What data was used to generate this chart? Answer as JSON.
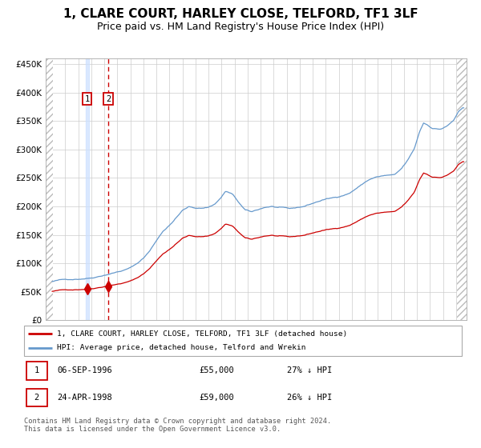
{
  "title": "1, CLARE COURT, HARLEY CLOSE, TELFORD, TF1 3LF",
  "subtitle": "Price paid vs. HM Land Registry's House Price Index (HPI)",
  "title_fontsize": 11,
  "subtitle_fontsize": 9,
  "legend_line1": "1, CLARE COURT, HARLEY CLOSE, TELFORD, TF1 3LF (detached house)",
  "legend_line2": "HPI: Average price, detached house, Telford and Wrekin",
  "red_color": "#cc0000",
  "blue_color": "#6699cc",
  "vline1_color": "#cce0ff",
  "vline2_color": "#cc0000",
  "sale1_date": 1996.68,
  "sale1_price": 55000,
  "sale2_date": 1998.31,
  "sale2_price": 59000,
  "sale1_label": "06-SEP-1996",
  "sale2_label": "24-APR-1998",
  "sale1_pct": "27% ↓ HPI",
  "sale2_pct": "26% ↓ HPI",
  "ylim": [
    0,
    460000
  ],
  "xlim_start": 1993.5,
  "xlim_end": 2025.8,
  "hpi_anchors": [
    [
      1994.0,
      68000
    ],
    [
      1994.5,
      70000
    ],
    [
      1995.0,
      71000
    ],
    [
      1995.5,
      72000
    ],
    [
      1996.0,
      73000
    ],
    [
      1996.5,
      74500
    ],
    [
      1997.0,
      76000
    ],
    [
      1997.5,
      79000
    ],
    [
      1998.0,
      82000
    ],
    [
      1998.5,
      85000
    ],
    [
      1999.0,
      88000
    ],
    [
      1999.5,
      91000
    ],
    [
      2000.0,
      95000
    ],
    [
      2000.5,
      102000
    ],
    [
      2001.0,
      112000
    ],
    [
      2001.5,
      125000
    ],
    [
      2002.0,
      143000
    ],
    [
      2002.5,
      160000
    ],
    [
      2003.0,
      170000
    ],
    [
      2003.5,
      183000
    ],
    [
      2004.0,
      196000
    ],
    [
      2004.5,
      202000
    ],
    [
      2005.0,
      200000
    ],
    [
      2005.5,
      200000
    ],
    [
      2006.0,
      202000
    ],
    [
      2006.5,
      208000
    ],
    [
      2007.0,
      220000
    ],
    [
      2007.3,
      230000
    ],
    [
      2007.8,
      225000
    ],
    [
      2008.3,
      210000
    ],
    [
      2008.8,
      196000
    ],
    [
      2009.3,
      192000
    ],
    [
      2009.8,
      196000
    ],
    [
      2010.3,
      200000
    ],
    [
      2010.8,
      202000
    ],
    [
      2011.3,
      200000
    ],
    [
      2011.8,
      198000
    ],
    [
      2012.3,
      196000
    ],
    [
      2012.8,
      198000
    ],
    [
      2013.3,
      200000
    ],
    [
      2013.8,
      204000
    ],
    [
      2014.3,
      208000
    ],
    [
      2014.8,
      212000
    ],
    [
      2015.3,
      214000
    ],
    [
      2015.8,
      216000
    ],
    [
      2016.3,
      220000
    ],
    [
      2016.8,
      224000
    ],
    [
      2017.3,
      232000
    ],
    [
      2017.8,
      240000
    ],
    [
      2018.3,
      248000
    ],
    [
      2018.8,
      252000
    ],
    [
      2019.3,
      254000
    ],
    [
      2019.8,
      255000
    ],
    [
      2020.3,
      255000
    ],
    [
      2020.8,
      265000
    ],
    [
      2021.3,
      280000
    ],
    [
      2021.8,
      300000
    ],
    [
      2022.2,
      330000
    ],
    [
      2022.5,
      345000
    ],
    [
      2022.8,
      342000
    ],
    [
      2023.2,
      336000
    ],
    [
      2023.8,
      335000
    ],
    [
      2024.3,
      340000
    ],
    [
      2024.8,
      350000
    ],
    [
      2025.2,
      365000
    ],
    [
      2025.5,
      370000
    ]
  ],
  "footer": "Contains HM Land Registry data © Crown copyright and database right 2024.\nThis data is licensed under the Open Government Licence v3.0.",
  "plot_bg": "#ffffff",
  "grid_color": "#cccccc"
}
